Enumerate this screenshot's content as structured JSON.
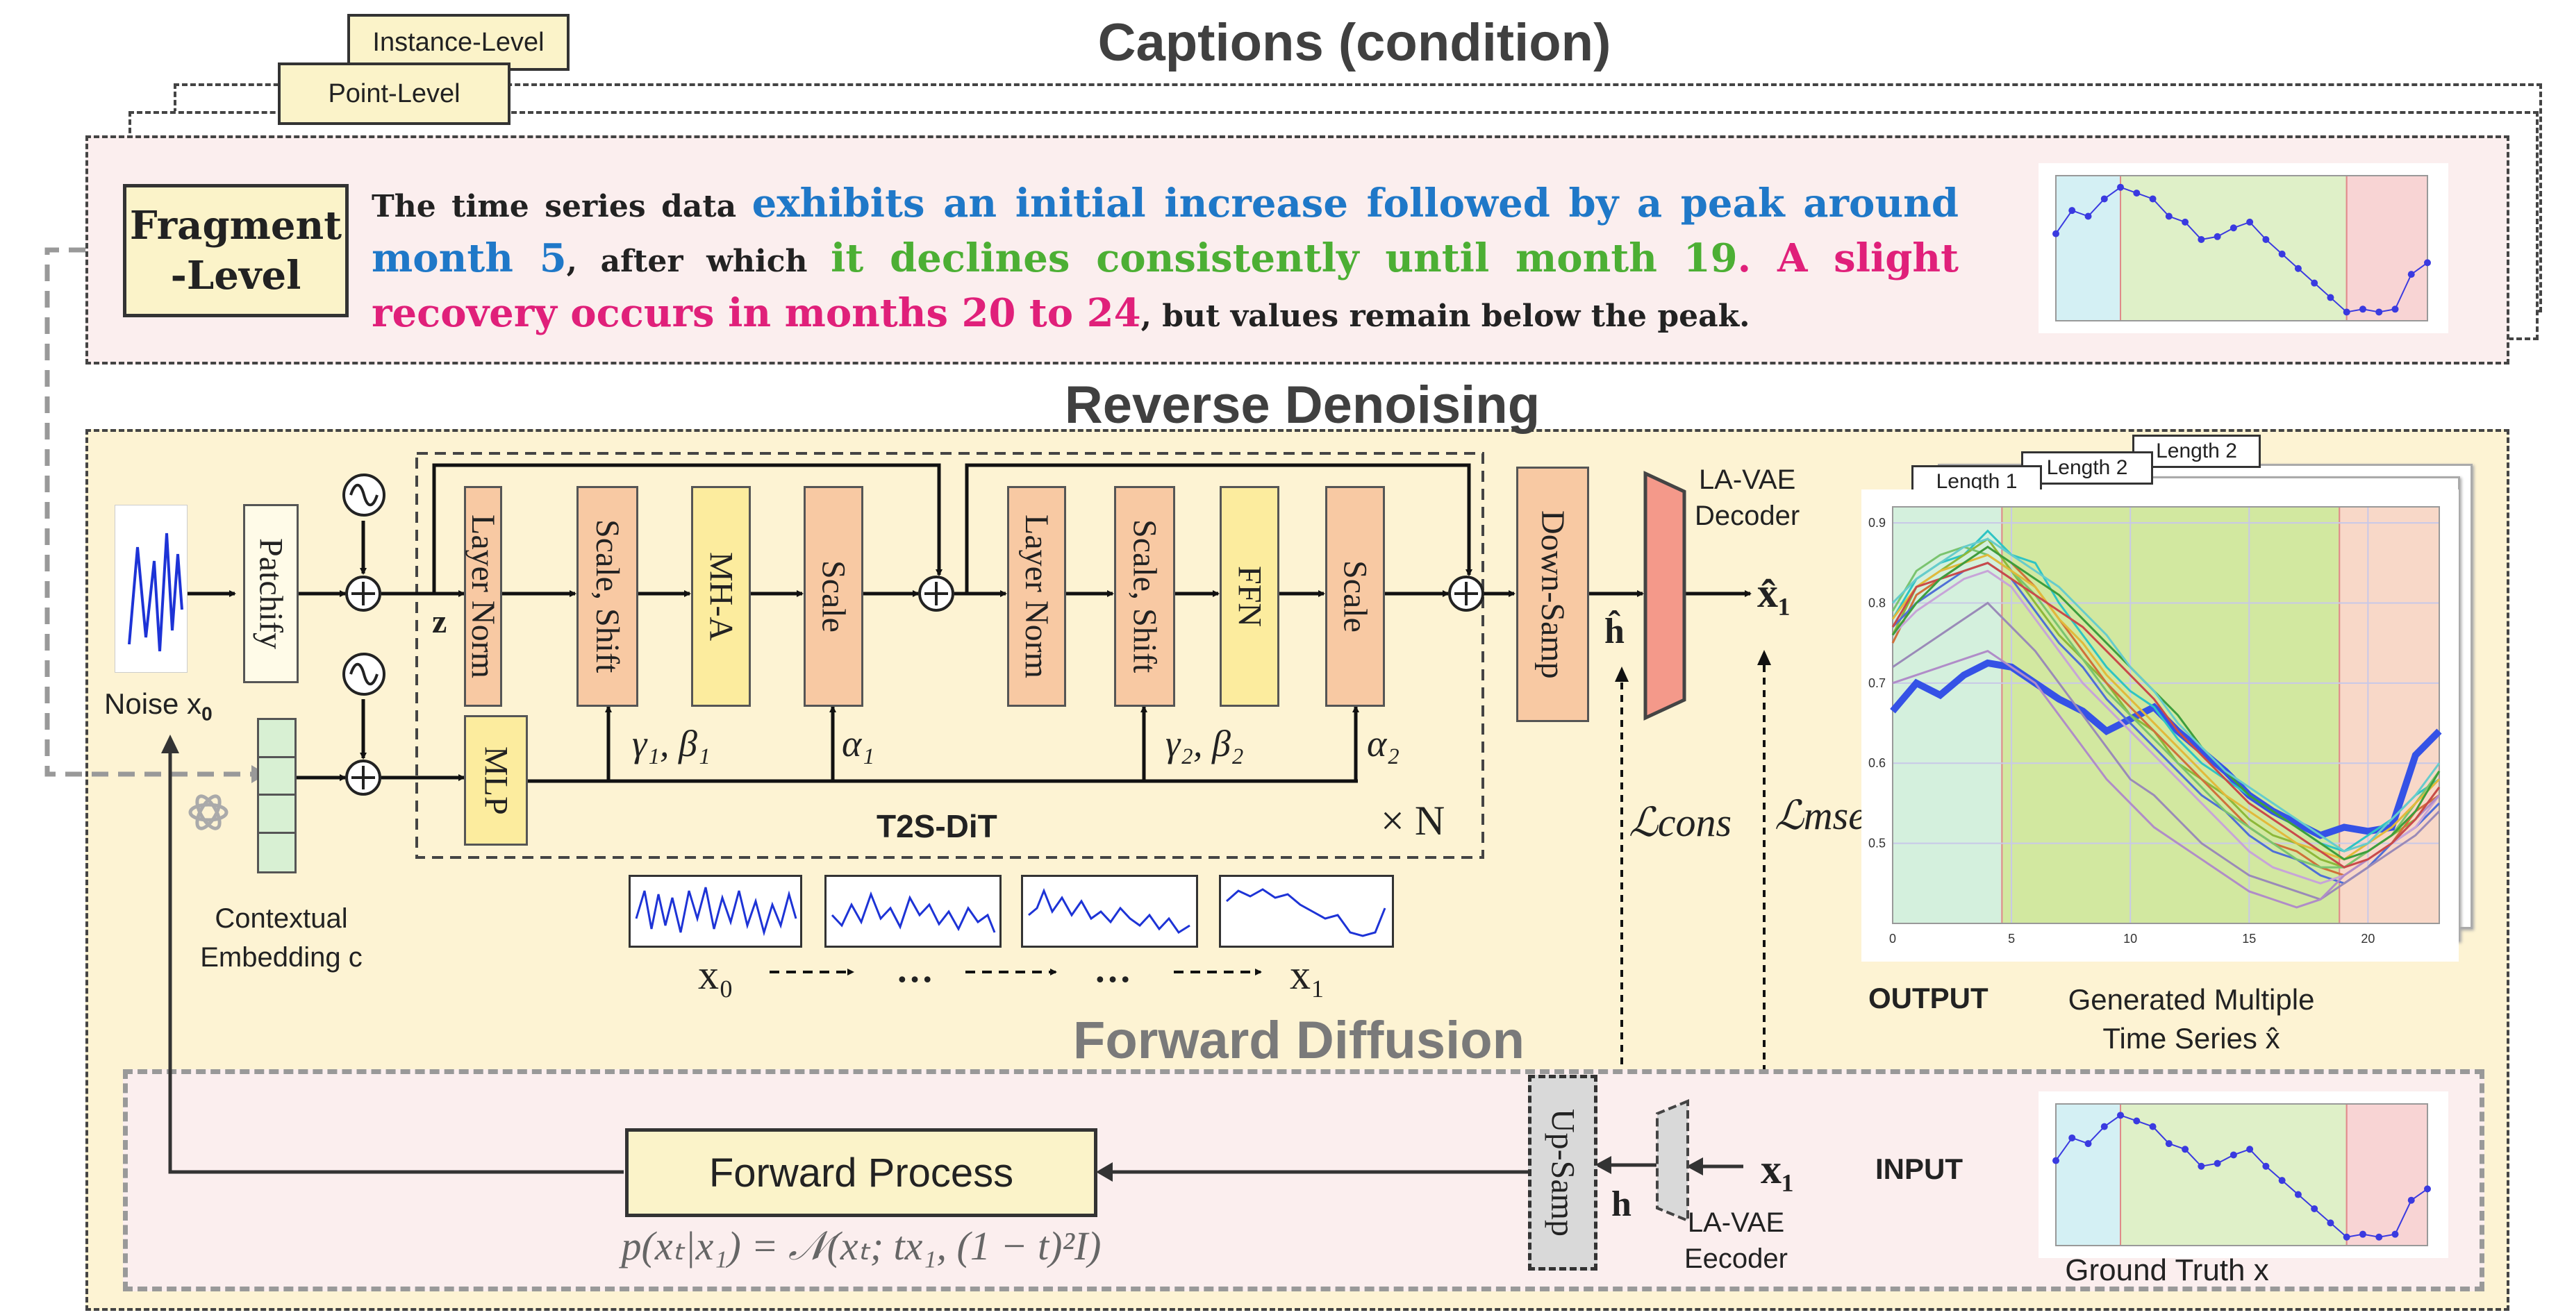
{
  "captions": {
    "title": "Captions (condition)",
    "instance_level": "Instance-Level",
    "point_level": "Point-Level",
    "fragment_level_line1": "Fragment",
    "fragment_level_line2": "-Level",
    "text_1": "The time series data ",
    "text_2": "exhibits an initial increase followed by a peak around month 5",
    "text_3": ", after which ",
    "text_4": "it declines consistently until month 19",
    "text_5": ". ",
    "text_6": "A slight recovery occurs in months 20 to 24",
    "text_7": ", but values remain below the peak."
  },
  "reverse": {
    "title": "Reverse Denoising",
    "noise_label": "Noise x",
    "noise_sub": "0",
    "patchify": "Patchify",
    "layer_norm_1": "Layer Norm",
    "scale_shift_1": "Scale, Shift",
    "mha": "MH-A",
    "scale_1": "Scale",
    "layer_norm_2": "Layer Norm",
    "scale_shift_2": "Scale, Shift",
    "ffn": "FFN",
    "scale_2": "Scale",
    "mlp": "MLP",
    "down_samp": "Down-Samp",
    "la_vae_decoder_1": "LA-VAE",
    "la_vae_decoder_2": "Decoder",
    "z_label": "z",
    "gamma1_beta1": "γ₁, β₁",
    "alpha1": "α₁",
    "gamma2_beta2": "γ₂, β₂",
    "alpha2": "α₂",
    "t2s_dit": "T2S-DiT",
    "times_n": "× N",
    "h_hat": "ĥ",
    "x1_hat": "x̂₁",
    "l_cons": "ℒcons",
    "l_mse": "ℒmse",
    "contextual_1": "Contextual",
    "contextual_2": "Embedding c",
    "seq_x0": "x₀",
    "seq_dots_1": "…",
    "seq_dots_2": "…",
    "seq_x1": "x₁"
  },
  "output": {
    "length_1": "Length 1",
    "length_2a": "Length 2",
    "length_2b": "Length 2",
    "output_label": "OUTPUT",
    "generated_1": "Generated Multiple",
    "generated_2": "Time Series x̂"
  },
  "forward": {
    "title": "Forward Diffusion",
    "forward_process": "Forward Process",
    "equation": "p(xₜ|x₁) = 𝒩(xₜ; tx₁, (1 − t)²I)",
    "up_samp": "Up-Samp",
    "h_label": "h",
    "x1_label": "x₁",
    "la_vae_encoder_1": "LA-VAE",
    "la_vae_encoder_2": "Eecoder",
    "input_label": "INPUT",
    "ground_truth": "Ground Truth x"
  },
  "colors": {
    "caption_bg": "#fbeeee",
    "reverse_bg": "#fdf3d3",
    "forward_bg": "#fbeeee",
    "blue_text": "#1f78c8",
    "green_text": "#4caf34",
    "pink_text": "#e0207a",
    "decoder_red": "#f4998a",
    "encoder_gray": "#d9d9d9",
    "embedding_green": "#d8f0d3"
  },
  "chart_data": [
    {
      "type": "line",
      "title": "",
      "x": [
        1,
        2,
        3,
        4,
        5,
        6,
        7,
        8,
        9,
        10,
        11,
        12,
        13,
        14,
        15,
        16,
        17,
        18,
        19,
        20,
        21,
        22,
        23,
        24
      ],
      "series": [
        {
          "values": [
            0.65,
            0.69,
            0.68,
            0.71,
            0.73,
            0.72,
            0.71,
            0.68,
            0.67,
            0.64,
            0.645,
            0.66,
            0.67,
            0.64,
            0.615,
            0.59,
            0.565,
            0.54,
            0.515,
            0.52,
            0.515,
            0.52,
            0.58,
            0.6
          ]
        }
      ],
      "regions": [
        [
          1,
          5,
          "#d4f0f4"
        ],
        [
          5,
          19,
          "#dff0c8"
        ],
        [
          19,
          24,
          "#f8d4d4"
        ]
      ],
      "ylim": [
        0.5,
        0.75
      ]
    },
    {
      "type": "line",
      "x": [
        0,
        1,
        2,
        3,
        4,
        5,
        6,
        7,
        8,
        9,
        10,
        11,
        12,
        13,
        14,
        15,
        16,
        17,
        18,
        19,
        20,
        21,
        22,
        23
      ],
      "series": [
        {
          "values": [
            0.665,
            0.7,
            0.685,
            0.71,
            0.725,
            0.72,
            0.7,
            0.68,
            0.665,
            0.64,
            0.655,
            0.67,
            0.64,
            0.615,
            0.59,
            0.56,
            0.54,
            0.525,
            0.51,
            0.52,
            0.515,
            0.52,
            0.61,
            0.64
          ],
          "color": "#3552e6",
          "width": 10
        },
        {
          "values": [
            0.78,
            0.83,
            0.85,
            0.86,
            0.89,
            0.86,
            0.85,
            0.8,
            0.76,
            0.72,
            0.69,
            0.67,
            0.63,
            0.6,
            0.58,
            0.56,
            0.54,
            0.52,
            0.5,
            0.49,
            0.51,
            0.53,
            0.56,
            0.58
          ],
          "color": "#2ec4c4"
        },
        {
          "values": [
            0.76,
            0.82,
            0.84,
            0.86,
            0.88,
            0.84,
            0.8,
            0.76,
            0.73,
            0.7,
            0.66,
            0.64,
            0.6,
            0.58,
            0.56,
            0.53,
            0.51,
            0.5,
            0.48,
            0.47,
            0.49,
            0.51,
            0.53,
            0.57
          ],
          "color": "#8db83a"
        },
        {
          "values": [
            0.75,
            0.81,
            0.83,
            0.85,
            0.87,
            0.85,
            0.82,
            0.78,
            0.74,
            0.7,
            0.67,
            0.64,
            0.61,
            0.58,
            0.55,
            0.52,
            0.5,
            0.49,
            0.47,
            0.46,
            0.48,
            0.5,
            0.54,
            0.56
          ],
          "color": "#d0703a"
        },
        {
          "values": [
            0.77,
            0.8,
            0.82,
            0.84,
            0.85,
            0.83,
            0.79,
            0.75,
            0.72,
            0.68,
            0.65,
            0.62,
            0.59,
            0.56,
            0.54,
            0.51,
            0.49,
            0.48,
            0.46,
            0.45,
            0.47,
            0.5,
            0.52,
            0.55
          ],
          "color": "#4f6fd6"
        },
        {
          "values": [
            0.79,
            0.84,
            0.86,
            0.87,
            0.86,
            0.84,
            0.81,
            0.77,
            0.73,
            0.69,
            0.66,
            0.63,
            0.6,
            0.57,
            0.54,
            0.52,
            0.5,
            0.48,
            0.47,
            0.47,
            0.49,
            0.51,
            0.55,
            0.59
          ],
          "color": "#7ac46f"
        },
        {
          "values": [
            0.76,
            0.79,
            0.81,
            0.83,
            0.84,
            0.82,
            0.78,
            0.74,
            0.7,
            0.67,
            0.64,
            0.61,
            0.58,
            0.55,
            0.52,
            0.49,
            0.47,
            0.46,
            0.45,
            0.46,
            0.48,
            0.5,
            0.52,
            0.56
          ],
          "color": "#c7a4d8"
        },
        {
          "values": [
            0.72,
            0.74,
            0.76,
            0.78,
            0.8,
            0.77,
            0.74,
            0.7,
            0.66,
            0.62,
            0.58,
            0.56,
            0.53,
            0.5,
            0.48,
            0.46,
            0.45,
            0.44,
            0.43,
            0.45,
            0.47,
            0.49,
            0.51,
            0.54
          ],
          "color": "#9a8ab8"
        },
        {
          "values": [
            0.7,
            0.71,
            0.72,
            0.73,
            0.74,
            0.72,
            0.7,
            0.66,
            0.62,
            0.58,
            0.55,
            0.52,
            0.5,
            0.48,
            0.46,
            0.44,
            0.43,
            0.42,
            0.43,
            0.46,
            0.48,
            0.5,
            0.53,
            0.56
          ],
          "color": "#b08cc8"
        },
        {
          "values": [
            0.78,
            0.82,
            0.84,
            0.85,
            0.86,
            0.84,
            0.82,
            0.78,
            0.75,
            0.71,
            0.68,
            0.65,
            0.62,
            0.59,
            0.56,
            0.54,
            0.52,
            0.5,
            0.49,
            0.48,
            0.5,
            0.52,
            0.55,
            0.58
          ],
          "color": "#e2b93b"
        },
        {
          "values": [
            0.77,
            0.82,
            0.83,
            0.84,
            0.85,
            0.83,
            0.81,
            0.79,
            0.77,
            0.74,
            0.71,
            0.68,
            0.64,
            0.61,
            0.58,
            0.55,
            0.53,
            0.51,
            0.49,
            0.47,
            0.48,
            0.5,
            0.53,
            0.57
          ],
          "color": "#c94a4a"
        },
        {
          "values": [
            0.76,
            0.8,
            0.83,
            0.85,
            0.87,
            0.85,
            0.83,
            0.81,
            0.78,
            0.75,
            0.72,
            0.69,
            0.66,
            0.62,
            0.59,
            0.56,
            0.54,
            0.52,
            0.5,
            0.48,
            0.49,
            0.51,
            0.54,
            0.59
          ],
          "color": "#3d9e3d"
        },
        {
          "values": [
            0.8,
            0.83,
            0.85,
            0.87,
            0.88,
            0.86,
            0.84,
            0.82,
            0.79,
            0.76,
            0.72,
            0.69,
            0.65,
            0.62,
            0.59,
            0.57,
            0.55,
            0.53,
            0.51,
            0.49,
            0.5,
            0.53,
            0.56,
            0.6
          ],
          "color": "#66cccc"
        }
      ],
      "x_ticks": [
        0,
        5,
        10,
        15,
        20
      ],
      "y_ticks": [
        0.5,
        0.6,
        0.7,
        0.8,
        0.9
      ],
      "regions": [
        [
          0,
          4.6,
          "#d4f0dd"
        ],
        [
          4.6,
          18.8,
          "#d2e8a0"
        ],
        [
          18.8,
          23,
          "#f8d8c8"
        ]
      ],
      "ylim": [
        0.4,
        0.92
      ]
    },
    {
      "type": "line",
      "x": [
        1,
        2,
        3,
        4,
        5,
        6,
        7,
        8,
        9,
        10,
        11,
        12,
        13,
        14,
        15,
        16,
        17,
        18,
        19,
        20,
        21,
        22,
        23,
        24
      ],
      "series": [
        {
          "values": [
            0.65,
            0.69,
            0.68,
            0.71,
            0.73,
            0.72,
            0.71,
            0.68,
            0.67,
            0.64,
            0.645,
            0.66,
            0.67,
            0.64,
            0.615,
            0.59,
            0.565,
            0.54,
            0.515,
            0.52,
            0.515,
            0.52,
            0.58,
            0.6
          ]
        }
      ],
      "regions": [
        [
          1,
          5,
          "#d4f0f4"
        ],
        [
          5,
          19,
          "#dff0c8"
        ],
        [
          19,
          24,
          "#f8d4d4"
        ]
      ],
      "ylim": [
        0.5,
        0.75
      ]
    }
  ]
}
